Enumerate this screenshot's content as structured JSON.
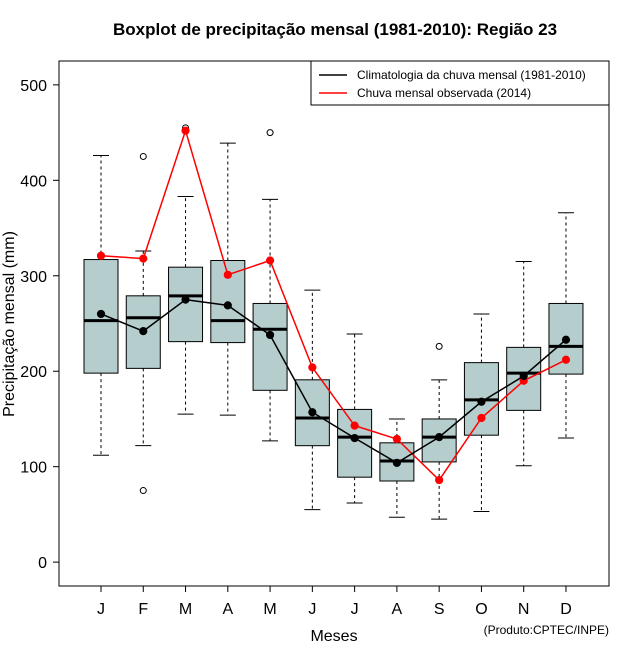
{
  "chart_data": {
    "type": "boxplot",
    "title": "Boxplot de precipitação mensal (1981-2010): Região 23",
    "xlabel": "Meses",
    "ylabel": "Precipitação mensal (mm)",
    "ylim": [
      -25,
      525
    ],
    "yticks": [
      0,
      100,
      200,
      300,
      400,
      500
    ],
    "categories": [
      "J",
      "F",
      "M",
      "A",
      "M",
      "J",
      "J",
      "A",
      "S",
      "O",
      "N",
      "D"
    ],
    "boxes": [
      {
        "whisker_low": 112,
        "q1": 198,
        "median": 253,
        "q3": 317,
        "whisker_high": 426,
        "outliers": []
      },
      {
        "whisker_low": 122,
        "q1": 203,
        "median": 256,
        "q3": 279,
        "whisker_high": 326,
        "outliers": [
          75,
          425
        ]
      },
      {
        "whisker_low": 155,
        "q1": 231,
        "median": 279,
        "q3": 309,
        "whisker_high": 383,
        "outliers": [
          455
        ]
      },
      {
        "whisker_low": 154,
        "q1": 230,
        "median": 253,
        "q3": 316,
        "whisker_high": 439,
        "outliers": []
      },
      {
        "whisker_low": 127,
        "q1": 180,
        "median": 244,
        "q3": 271,
        "whisker_high": 380,
        "outliers": [
          450
        ]
      },
      {
        "whisker_low": 55,
        "q1": 122,
        "median": 151,
        "q3": 191,
        "whisker_high": 285,
        "outliers": []
      },
      {
        "whisker_low": 62,
        "q1": 89,
        "median": 131,
        "q3": 160,
        "whisker_high": 239,
        "outliers": []
      },
      {
        "whisker_low": 47,
        "q1": 85,
        "median": 106,
        "q3": 125,
        "whisker_high": 150,
        "outliers": []
      },
      {
        "whisker_low": 45,
        "q1": 105,
        "median": 131,
        "q3": 150,
        "whisker_high": 191,
        "outliers": [
          226
        ]
      },
      {
        "whisker_low": 53,
        "q1": 133,
        "median": 170,
        "q3": 209,
        "whisker_high": 260,
        "outliers": []
      },
      {
        "whisker_low": 101,
        "q1": 159,
        "median": 198,
        "q3": 225,
        "whisker_high": 315,
        "outliers": []
      },
      {
        "whisker_low": 130,
        "q1": 197,
        "median": 226,
        "q3": 271,
        "whisker_high": 366,
        "outliers": []
      }
    ],
    "series": [
      {
        "name": "Climatologia da chuva mensal (1981-2010)",
        "color": "#000000",
        "values": [
          260,
          242,
          275,
          269,
          238,
          157,
          130,
          104,
          131,
          168,
          195,
          233
        ]
      },
      {
        "name": "Chuva mensal observada (2014)",
        "color": "#ff0000",
        "values": [
          321,
          318,
          452,
          301,
          316,
          204,
          143,
          129,
          86,
          151,
          190,
          212
        ]
      }
    ],
    "legend_position": "top-right",
    "box_color": "#b5cdcd",
    "credit": "(Produto:CPTEC/INPE)"
  }
}
